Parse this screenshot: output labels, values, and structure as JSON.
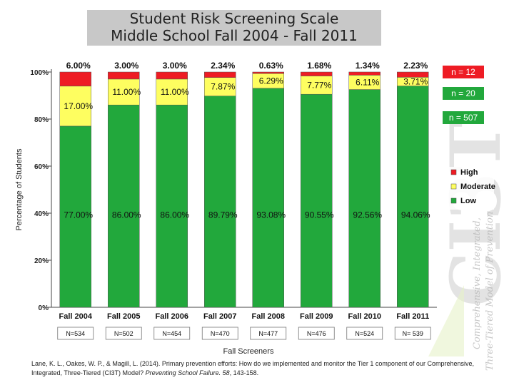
{
  "title_lines": [
    "Student Risk Screening Scale",
    "Middle School Fall 2004  -  Fall 2011"
  ],
  "chart_data": {
    "type": "stacked-bar",
    "title": "Student Risk Screening Scale Middle School Fall 2004 - Fall 2011",
    "xlabel": "Fall Screeners",
    "ylabel": "Percentage of Students",
    "ylim": [
      0,
      100
    ],
    "yticks": [
      "0%",
      "20%",
      "40%",
      "60%",
      "80%",
      "100%"
    ],
    "categories": [
      "Fall 2004",
      "Fall 2005",
      "Fall 2006",
      "Fall 2007",
      "Fall 2008",
      "Fall 2009",
      "Fall 2010",
      "Fall 2011"
    ],
    "series": [
      {
        "name": "Low",
        "color": "#22a83c",
        "values": [
          77.0,
          86.0,
          86.0,
          89.79,
          93.08,
          90.55,
          92.56,
          94.06
        ],
        "labels": [
          "77.00%",
          "86.00%",
          "86.00%",
          "89.79%",
          "93.08%",
          "90.55%",
          "92.56%",
          "94.06%"
        ]
      },
      {
        "name": "Moderate",
        "color": "#fefe60",
        "values": [
          17.0,
          11.0,
          11.0,
          7.87,
          6.29,
          7.77,
          6.11,
          3.71
        ],
        "labels": [
          "17.00%",
          "11.00%",
          "11.00%",
          "7.87%",
          "6.29%",
          "7.77%",
          "6.11%",
          "3.71%"
        ]
      },
      {
        "name": "High",
        "color": "#ee1c24",
        "values": [
          6.0,
          3.0,
          3.0,
          2.34,
          0.63,
          1.68,
          1.34,
          2.23
        ],
        "labels": [
          "6.00%",
          "3.00%",
          "3.00%",
          "2.34%",
          "0.63%",
          "1.68%",
          "1.34%",
          "2.23%"
        ]
      }
    ],
    "sample_sizes": [
      "N=534",
      "N=502",
      "N=454",
      "N=470",
      "N=477",
      "N=476",
      "N=524",
      "N= 539"
    ],
    "legend": [
      "High",
      "Moderate",
      "Low"
    ],
    "n_labels": [
      {
        "text": "n = 12",
        "color": "#ee1c24"
      },
      {
        "text": "n = 20",
        "color": "#22a83c"
      },
      {
        "text": "n = 507",
        "color": "#22a83c"
      }
    ]
  },
  "watermark": {
    "letters": "CI3T",
    "line1": "Comprehensive, Integrated,",
    "line2": "Three-Tiered Model of Prevention"
  },
  "citation_prefix": "Lane, K. L., Oakes, W. P., & Magill, L. (2014). Primary prevention efforts: How do we implemented and monitor the Tier 1 component of our Comprehensive, Integrated, Three-Tiered (CI3T) Model? ",
  "citation_journal": "Preventing School Failure. 58",
  "citation_suffix": ", 143-158."
}
